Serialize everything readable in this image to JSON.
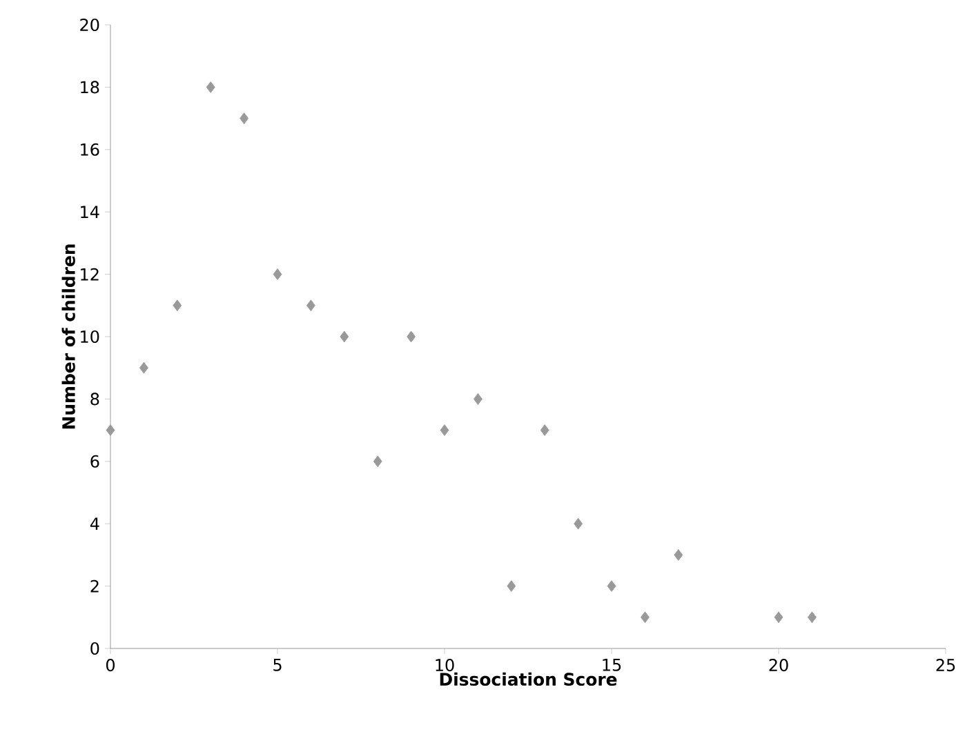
{
  "chart_data": {
    "type": "scatter",
    "xlabel": "Dissociation Score",
    "ylabel": "Number of children",
    "x": [
      0,
      1,
      2,
      3,
      4,
      5,
      6,
      7,
      8,
      9,
      10,
      11,
      12,
      13,
      14,
      15,
      16,
      17,
      20,
      21
    ],
    "values": [
      7,
      9,
      11,
      18,
      17,
      12,
      11,
      10,
      6,
      10,
      7,
      8,
      2,
      7,
      4,
      2,
      1,
      3,
      1,
      1
    ],
    "color": "#999999",
    "marker": "diamond",
    "xlim": [
      0,
      25
    ],
    "ylim": [
      0,
      20
    ],
    "xticks": [
      0,
      5,
      10,
      15,
      20,
      25
    ],
    "yticks": [
      0,
      2,
      4,
      6,
      8,
      10,
      12,
      14,
      16,
      18,
      20
    ]
  }
}
